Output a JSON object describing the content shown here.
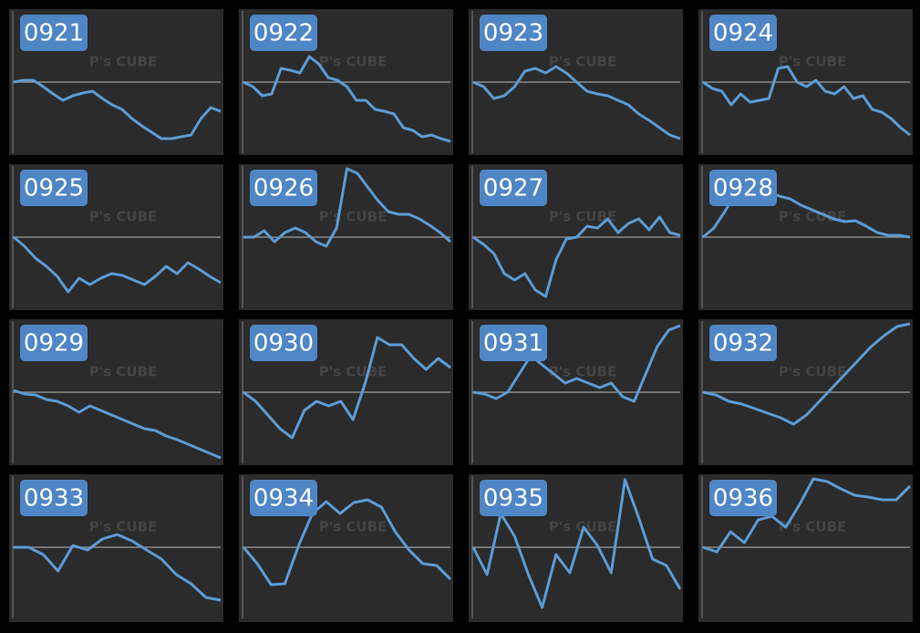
{
  "watermark": "P's CUBE",
  "chart_data": [
    {
      "type": "line",
      "title": "0921",
      "ylim": [
        -80,
        80
      ],
      "color": "#5b9bd5",
      "values": [
        0,
        2,
        2,
        -5,
        -13,
        -20,
        -15,
        -12,
        -10,
        -18,
        -25,
        -30,
        -40,
        -48,
        -55,
        -62,
        -62,
        -60,
        -58,
        -40,
        -28,
        -32
      ]
    },
    {
      "type": "line",
      "title": "0922",
      "ylim": [
        -80,
        80
      ],
      "color": "#5b9bd5",
      "values": [
        0,
        -5,
        -15,
        -13,
        15,
        13,
        10,
        28,
        20,
        5,
        2,
        -5,
        -20,
        -20,
        -30,
        -32,
        -35,
        -50,
        -53,
        -60,
        -58,
        -62,
        -65
      ]
    },
    {
      "type": "line",
      "title": "0923",
      "ylim": [
        -80,
        80
      ],
      "color": "#5b9bd5",
      "values": [
        0,
        -5,
        -18,
        -15,
        -5,
        12,
        15,
        10,
        17,
        10,
        0,
        -10,
        -13,
        -15,
        -20,
        -25,
        -35,
        -42,
        -50,
        -58,
        -62
      ]
    },
    {
      "type": "line",
      "title": "0924",
      "ylim": [
        -80,
        80
      ],
      "color": "#5b9bd5",
      "values": [
        0,
        -7,
        -10,
        -25,
        -13,
        -22,
        -20,
        -18,
        15,
        17,
        0,
        -5,
        2,
        -10,
        -13,
        -5,
        -18,
        -15,
        -30,
        -33,
        -40,
        -50,
        -58
      ]
    },
    {
      "type": "line",
      "title": "0925",
      "ylim": [
        -80,
        80
      ],
      "color": "#5b9bd5",
      "values": [
        0,
        -10,
        -23,
        -32,
        -43,
        -60,
        -45,
        -52,
        -45,
        -40,
        -42,
        -47,
        -52,
        -43,
        -32,
        -40,
        -28,
        -35,
        -43,
        -50
      ]
    },
    {
      "type": "line",
      "title": "0926",
      "ylim": [
        -80,
        80
      ],
      "color": "#5b9bd5",
      "values": [
        0,
        0,
        7,
        -5,
        5,
        10,
        5,
        -5,
        -10,
        10,
        75,
        70,
        55,
        40,
        28,
        25,
        25,
        20,
        13,
        5,
        -5
      ]
    },
    {
      "type": "line",
      "title": "0927",
      "ylim": [
        -80,
        80
      ],
      "color": "#5b9bd5",
      "values": [
        0,
        -8,
        -18,
        -40,
        -47,
        -40,
        -58,
        -65,
        -25,
        -2,
        0,
        12,
        10,
        20,
        5,
        15,
        20,
        8,
        22,
        5,
        2
      ]
    },
    {
      "type": "line",
      "title": "0928",
      "ylim": [
        -80,
        80
      ],
      "color": "#5b9bd5",
      "values": [
        0,
        10,
        28,
        48,
        55,
        55,
        50,
        45,
        42,
        35,
        30,
        25,
        20,
        17,
        18,
        12,
        5,
        2,
        2,
        0
      ]
    },
    {
      "type": "line",
      "title": "0929",
      "ylim": [
        -80,
        80
      ],
      "color": "#5b9bd5",
      "values": [
        2,
        -2,
        -3,
        -8,
        -10,
        -15,
        -22,
        -15,
        -20,
        -25,
        -30,
        -35,
        -40,
        -42,
        -48,
        -52,
        -57,
        -62,
        -67,
        -72
      ]
    },
    {
      "type": "line",
      "title": "0930",
      "ylim": [
        -80,
        80
      ],
      "color": "#5b9bd5",
      "values": [
        0,
        -10,
        -25,
        -40,
        -50,
        -20,
        -10,
        -15,
        -10,
        -30,
        10,
        60,
        52,
        52,
        37,
        25,
        37,
        27
      ]
    },
    {
      "type": "line",
      "title": "0931",
      "ylim": [
        -80,
        80
      ],
      "color": "#5b9bd5",
      "values": [
        0,
        -2,
        -7,
        0,
        20,
        40,
        30,
        20,
        10,
        15,
        10,
        5,
        10,
        -5,
        -10,
        20,
        50,
        68,
        73
      ]
    },
    {
      "type": "line",
      "title": "0932",
      "ylim": [
        -80,
        80
      ],
      "color": "#5b9bd5",
      "values": [
        0,
        -3,
        -10,
        -13,
        -18,
        -23,
        -28,
        -35,
        -25,
        -10,
        5,
        20,
        35,
        50,
        62,
        72,
        75
      ]
    },
    {
      "type": "line",
      "title": "0933",
      "ylim": [
        -80,
        80
      ],
      "color": "#5b9bd5",
      "values": [
        0,
        0,
        -8,
        -26,
        2,
        -3,
        9,
        14,
        7,
        -3,
        -13,
        -30,
        -40,
        -55,
        -58
      ]
    },
    {
      "type": "line",
      "title": "0934",
      "ylim": [
        -80,
        80
      ],
      "color": "#5b9bd5",
      "values": [
        0,
        -18,
        -41,
        -40,
        2,
        37,
        50,
        37,
        49,
        52,
        44,
        17,
        -3,
        -18,
        -20,
        -35
      ]
    },
    {
      "type": "line",
      "title": "0935",
      "ylim": [
        -80,
        80
      ],
      "color": "#5b9bd5",
      "values": [
        0,
        -30,
        37,
        12,
        -30,
        -66,
        -8,
        -28,
        22,
        2,
        -28,
        74,
        32,
        -13,
        -20,
        -46
      ]
    },
    {
      "type": "line",
      "title": "0936",
      "ylim": [
        -80,
        80
      ],
      "color": "#5b9bd5",
      "values": [
        0,
        -5,
        17,
        5,
        30,
        34,
        22,
        47,
        75,
        72,
        64,
        57,
        55,
        52,
        52,
        67
      ]
    }
  ]
}
